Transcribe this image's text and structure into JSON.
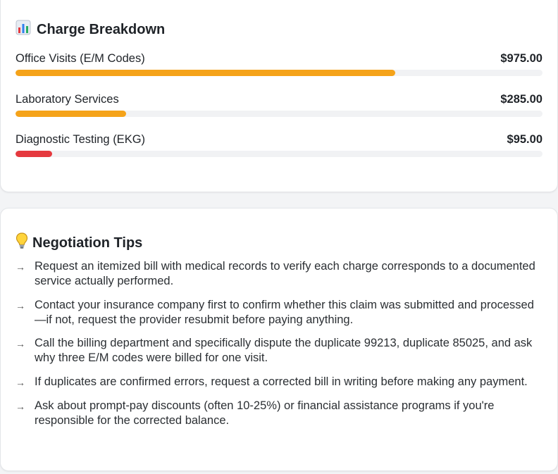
{
  "breakdown": {
    "title": "Charge Breakdown",
    "icon": "bar-chart-icon",
    "items": [
      {
        "label": "Office Visits (E/M Codes)",
        "amount": "$975.00",
        "fraction": 0.72,
        "color": "#f5a31a"
      },
      {
        "label": "Laboratory Services",
        "amount": "$285.00",
        "fraction": 0.21,
        "color": "#f5a31a"
      },
      {
        "label": "Diagnostic Testing (EKG)",
        "amount": "$95.00",
        "fraction": 0.07,
        "color": "#e5393e"
      }
    ]
  },
  "tips": {
    "title": "Negotiation Tips",
    "icon": "lightbulb-icon",
    "arrow": "→",
    "items": [
      "Request an itemized bill with medical records to verify each charge corresponds to a documented service actually performed.",
      "Contact your insurance company first to confirm whether this claim was submitted and processed—if not, request the provider resubmit before paying anything.",
      "Call the billing department and specifically dispute the duplicate 99213, duplicate 85025, and ask why three E/M codes were billed for one visit.",
      "If duplicates are confirmed errors, request a corrected bill in writing before making any payment.",
      "Ask about prompt-pay discounts (often 10-25%) or financial assistance programs if you're responsible for the corrected balance."
    ]
  }
}
